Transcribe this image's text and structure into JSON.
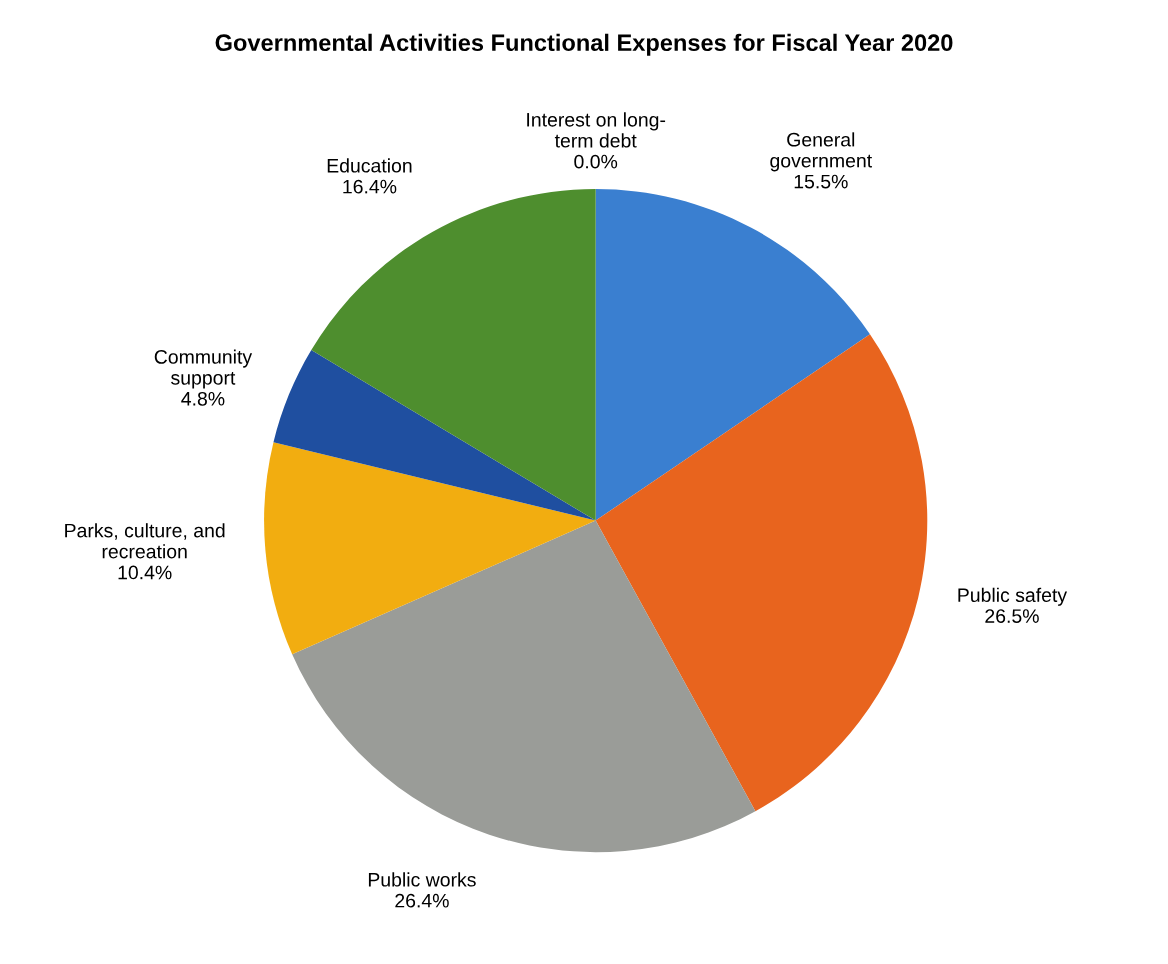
{
  "chart_data": {
    "type": "pie",
    "title": "Governmental Activities Functional Expenses for Fiscal Year 2020",
    "categories": [
      "General\ngovernment",
      "Public safety",
      "Public works",
      "Parks, culture, and\nrecreation",
      "Community\nsupport",
      "Education",
      "Interest on long-\nterm debt"
    ],
    "values": [
      15.5,
      26.5,
      26.4,
      10.4,
      4.8,
      16.4,
      0.0
    ],
    "colors": [
      "#3a7fd0",
      "#e8641e",
      "#9a9c98",
      "#f2ad10",
      "#1f4fa0",
      "#4e8e2e",
      "#7f3fa0"
    ],
    "value_labels": [
      "15.5%",
      "26.5%",
      "26.4%",
      "10.4%",
      "4.8%",
      "16.4%",
      "0.0%"
    ],
    "legend": false
  }
}
